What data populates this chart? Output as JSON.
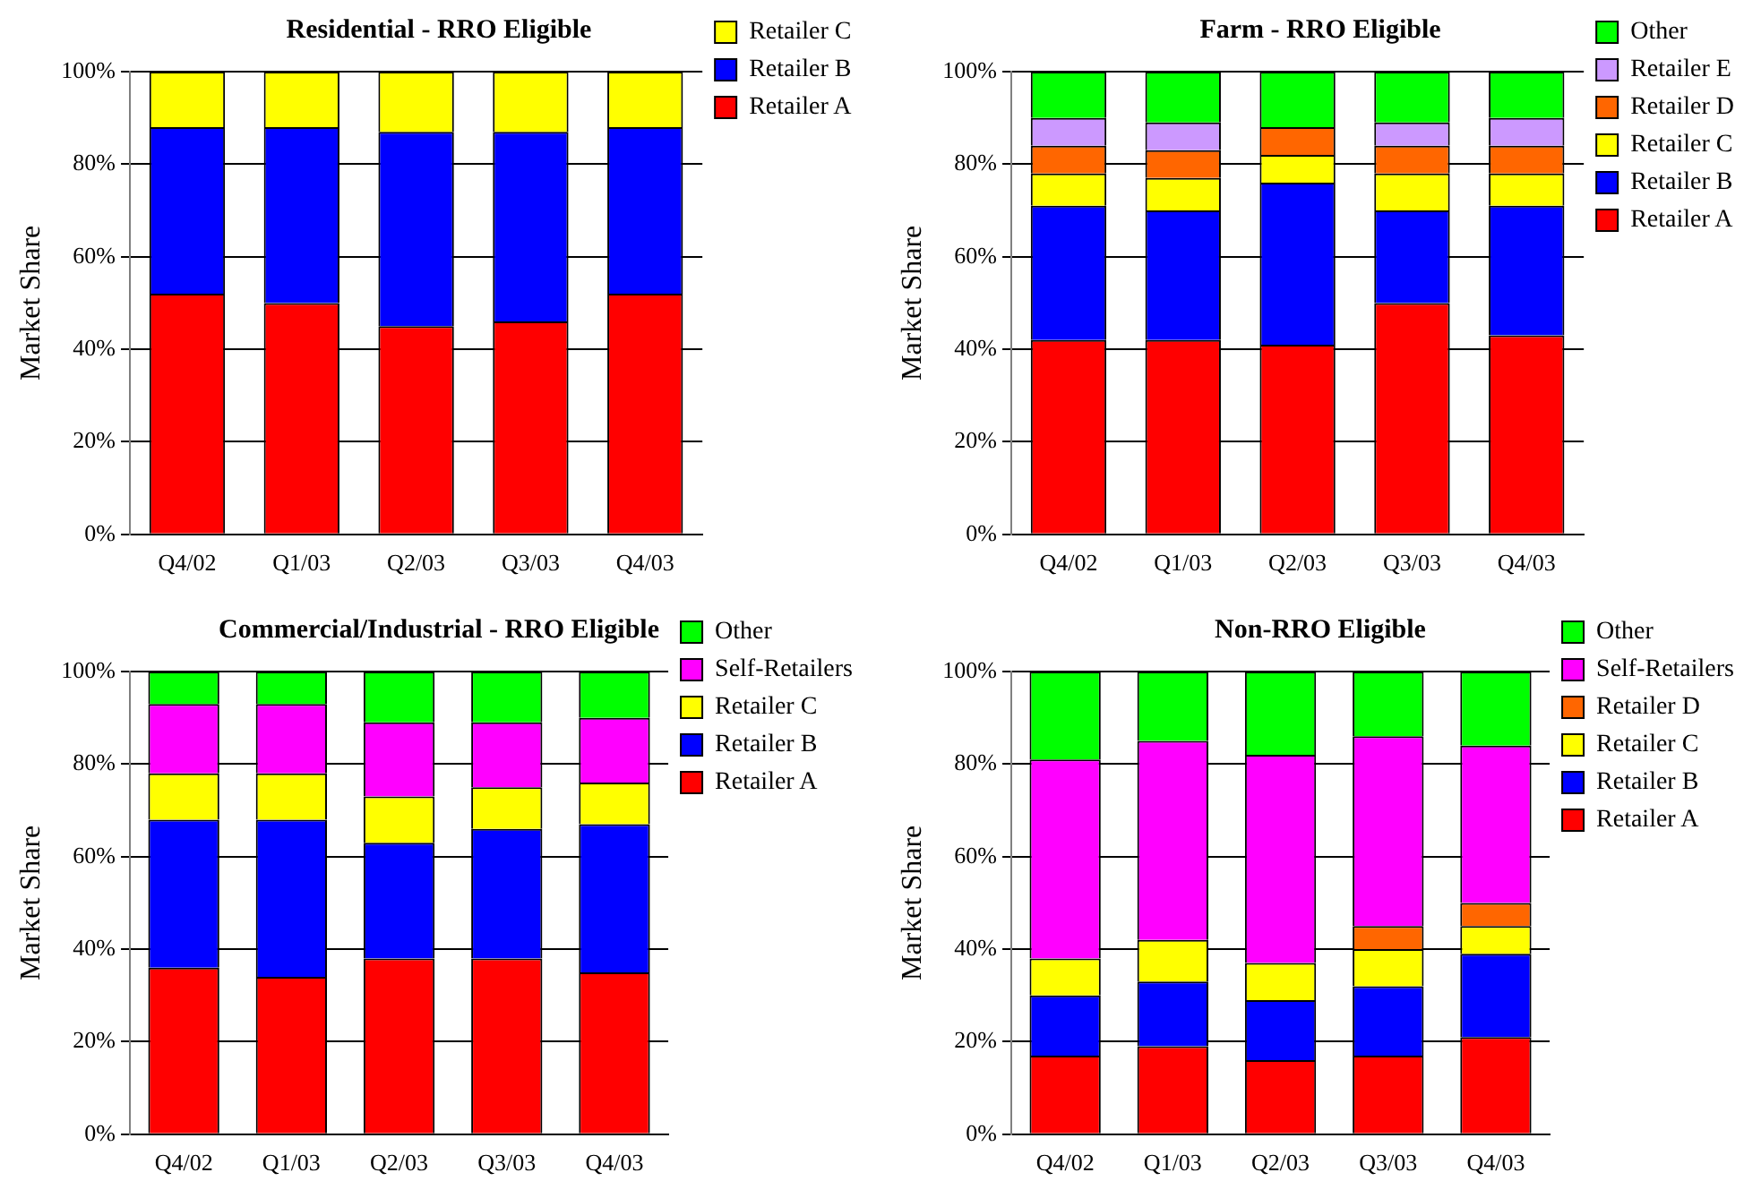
{
  "chart_data": [
    {
      "type": "bar",
      "title": "Residential - RRO Eligible",
      "ylabel": "Market Share",
      "categories": [
        "Q4/02",
        "Q1/03",
        "Q2/03",
        "Q3/03",
        "Q4/03"
      ],
      "stacked": true,
      "legend": "right",
      "grid": "y",
      "ylim": [
        0,
        100
      ],
      "yticks": [
        {
          "value": 0,
          "label": "0%"
        },
        {
          "value": 20,
          "label": "20%"
        },
        {
          "value": 40,
          "label": "40%"
        },
        {
          "value": 60,
          "label": "60%"
        },
        {
          "value": 80,
          "label": "80%"
        },
        {
          "value": 100,
          "label": "100%"
        }
      ],
      "series": [
        {
          "name": "Retailer A",
          "color": "#ff0000",
          "values": [
            52,
            50,
            45,
            46,
            52
          ]
        },
        {
          "name": "Retailer B",
          "color": "#0000ff",
          "values": [
            36,
            38,
            42,
            41,
            36
          ]
        },
        {
          "name": "Retailer C",
          "color": "#ffff00",
          "values": [
            12,
            12,
            13,
            13,
            12
          ]
        }
      ]
    },
    {
      "type": "bar",
      "title": "Farm - RRO Eligible",
      "ylabel": "Market Share",
      "categories": [
        "Q4/02",
        "Q1/03",
        "Q2/03",
        "Q3/03",
        "Q4/03"
      ],
      "stacked": true,
      "legend": "right",
      "grid": "y",
      "ylim": [
        0,
        100
      ],
      "yticks": [
        {
          "value": 0,
          "label": "0%"
        },
        {
          "value": 20,
          "label": "20%"
        },
        {
          "value": 40,
          "label": "40%"
        },
        {
          "value": 60,
          "label": "60%"
        },
        {
          "value": 80,
          "label": "80%"
        },
        {
          "value": 100,
          "label": "100%"
        }
      ],
      "series": [
        {
          "name": "Retailer A",
          "color": "#ff0000",
          "values": [
            42,
            42,
            41,
            50,
            43
          ]
        },
        {
          "name": "Retailer B",
          "color": "#0000ff",
          "values": [
            29,
            28,
            35,
            20,
            28
          ]
        },
        {
          "name": "Retailer C",
          "color": "#ffff00",
          "values": [
            7,
            7,
            6,
            8,
            7
          ]
        },
        {
          "name": "Retailer D",
          "color": "#ff6600",
          "values": [
            6,
            6,
            6,
            6,
            6
          ]
        },
        {
          "name": "Retailer E",
          "color": "#cc99ff",
          "values": [
            6,
            6,
            0,
            5,
            6
          ]
        },
        {
          "name": "Other",
          "color": "#00ff00",
          "values": [
            10,
            11,
            12,
            11,
            10
          ]
        }
      ]
    },
    {
      "type": "bar",
      "title": "Commercial/Industrial - RRO Eligible",
      "ylabel": "Market Share",
      "categories": [
        "Q4/02",
        "Q1/03",
        "Q2/03",
        "Q3/03",
        "Q4/03"
      ],
      "stacked": true,
      "legend": "right",
      "grid": "y",
      "ylim": [
        0,
        100
      ],
      "yticks": [
        {
          "value": 0,
          "label": "0%"
        },
        {
          "value": 20,
          "label": "20%"
        },
        {
          "value": 40,
          "label": "40%"
        },
        {
          "value": 60,
          "label": "60%"
        },
        {
          "value": 80,
          "label": "80%"
        },
        {
          "value": 100,
          "label": "100%"
        }
      ],
      "series": [
        {
          "name": "Retailer A",
          "color": "#ff0000",
          "values": [
            36,
            34,
            38,
            38,
            35
          ]
        },
        {
          "name": "Retailer B",
          "color": "#0000ff",
          "values": [
            32,
            34,
            25,
            28,
            32
          ]
        },
        {
          "name": "Retailer C",
          "color": "#ffff00",
          "values": [
            10,
            10,
            10,
            9,
            9
          ]
        },
        {
          "name": "Self-Retailers",
          "color": "#ff00ff",
          "values": [
            15,
            15,
            16,
            14,
            14
          ]
        },
        {
          "name": "Other",
          "color": "#00ff00",
          "values": [
            7,
            7,
            11,
            11,
            10
          ]
        }
      ]
    },
    {
      "type": "bar",
      "title": "Non-RRO Eligible",
      "ylabel": "Market Share",
      "categories": [
        "Q4/02",
        "Q1/03",
        "Q2/03",
        "Q3/03",
        "Q4/03"
      ],
      "stacked": true,
      "legend": "right",
      "grid": "y",
      "ylim": [
        0,
        100
      ],
      "yticks": [
        {
          "value": 0,
          "label": "0%"
        },
        {
          "value": 20,
          "label": "20%"
        },
        {
          "value": 40,
          "label": "40%"
        },
        {
          "value": 60,
          "label": "60%"
        },
        {
          "value": 80,
          "label": "80%"
        },
        {
          "value": 100,
          "label": "100%"
        }
      ],
      "series": [
        {
          "name": "Retailer A",
          "color": "#ff0000",
          "values": [
            17,
            19,
            16,
            17,
            21
          ]
        },
        {
          "name": "Retailer B",
          "color": "#0000ff",
          "values": [
            13,
            14,
            13,
            15,
            18
          ]
        },
        {
          "name": "Retailer C",
          "color": "#ffff00",
          "values": [
            8,
            9,
            8,
            8,
            6
          ]
        },
        {
          "name": "Retailer D",
          "color": "#ff6600",
          "values": [
            0,
            0,
            0,
            5,
            5
          ]
        },
        {
          "name": "Self-Retailers",
          "color": "#ff00ff",
          "values": [
            43,
            43,
            45,
            41,
            34
          ]
        },
        {
          "name": "Other",
          "color": "#00ff00",
          "values": [
            19,
            15,
            18,
            14,
            16
          ]
        }
      ]
    }
  ]
}
